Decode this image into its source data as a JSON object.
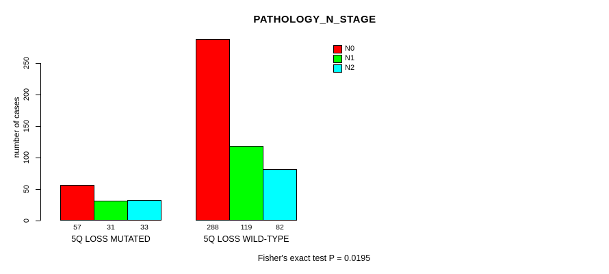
{
  "title": "PATHOLOGY_N_STAGE",
  "ylabel": "number of cases",
  "footer": "Fisher's exact test P = 0.0195",
  "legend": {
    "entries": [
      {
        "label": "N0",
        "color": "#ff0000"
      },
      {
        "label": "N1",
        "color": "#00ff00"
      },
      {
        "label": "N2",
        "color": "#00ffff"
      }
    ]
  },
  "chart_data": {
    "type": "bar",
    "title": "PATHOLOGY_N_STAGE",
    "xlabel": "",
    "ylabel": "number of cases",
    "categories": [
      "5Q LOSS MUTATED",
      "5Q LOSS WILD-TYPE"
    ],
    "series": [
      {
        "name": "N0",
        "color": "#ff0000",
        "values": [
          57,
          288
        ]
      },
      {
        "name": "N1",
        "color": "#00ff00",
        "values": [
          31,
          119
        ]
      },
      {
        "name": "N2",
        "color": "#00ffff",
        "values": [
          33,
          82
        ]
      }
    ],
    "yticks": [
      0,
      50,
      100,
      150,
      200,
      250
    ],
    "ylim": [
      0,
      290
    ],
    "grid": false,
    "legend_position": "top-right",
    "bar_value_labels_shown": true,
    "annotation": "Fisher's exact test P = 0.0195"
  }
}
